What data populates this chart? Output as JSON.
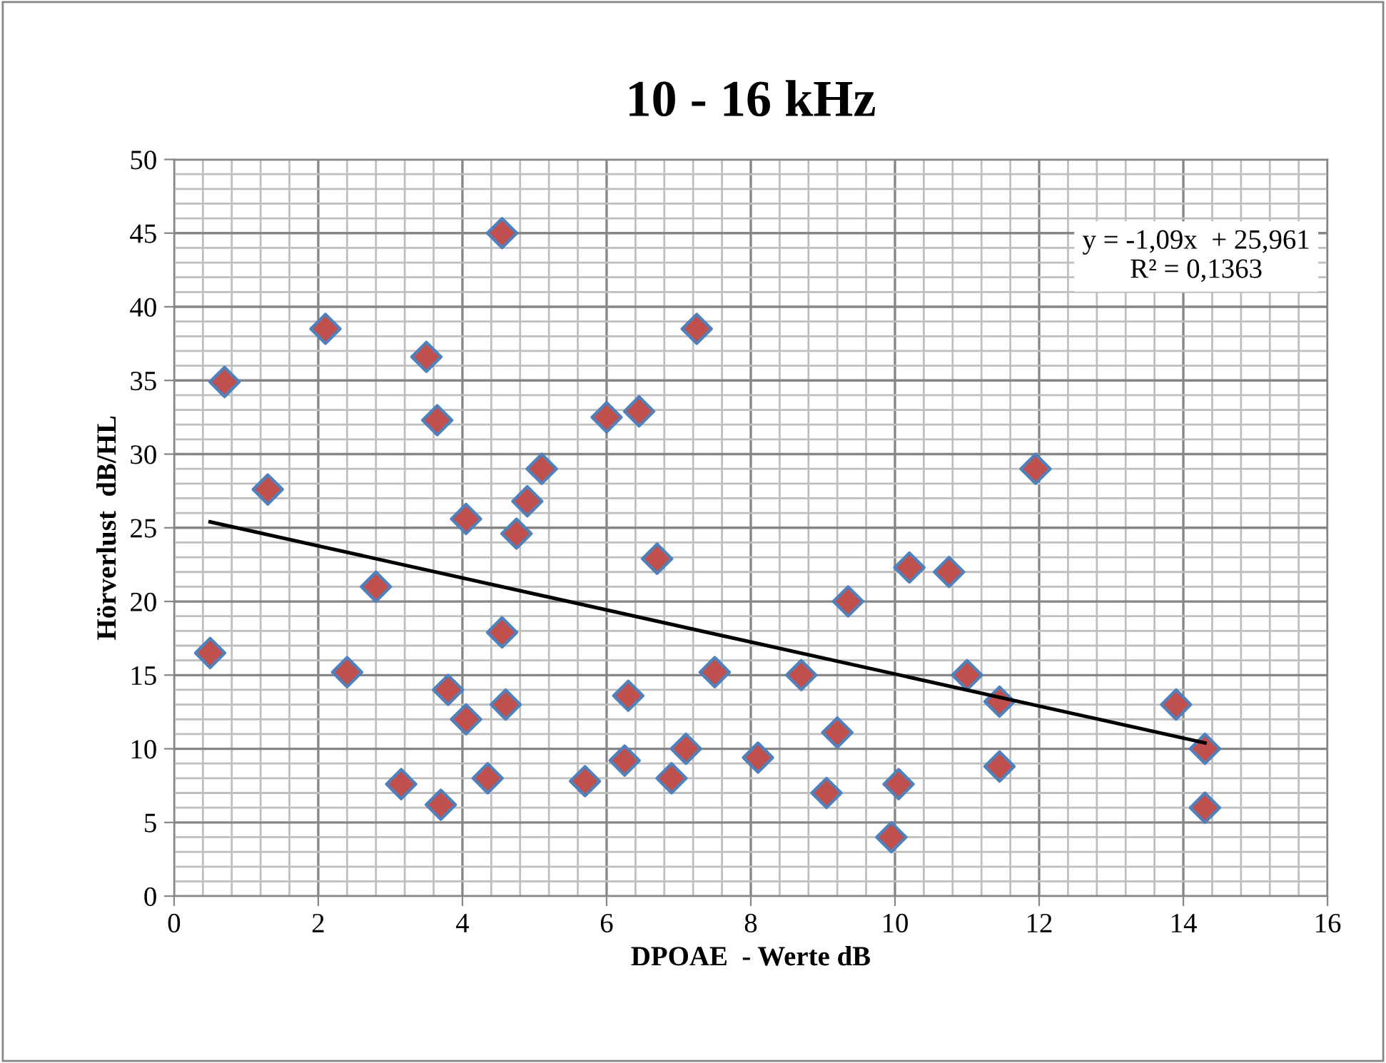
{
  "chart_data": {
    "type": "scatter",
    "title": "10 - 16 kHz",
    "xlabel": "DPOAE  - Werte dB",
    "ylabel": "Hörverlust  dB/HL",
    "xlim": [
      0,
      16
    ],
    "xticks": [
      0,
      2,
      4,
      6,
      8,
      10,
      12,
      14,
      16
    ],
    "ylim": [
      0,
      50
    ],
    "yticks": [
      0,
      5,
      10,
      15,
      20,
      25,
      30,
      35,
      40,
      45,
      50
    ],
    "grid": true,
    "series": [
      {
        "marker": "diamond",
        "color": "#c0504d",
        "x": [
          0.5,
          0.7,
          1.3,
          2.1,
          2.4,
          2.8,
          3.15,
          3.5,
          3.65,
          3.7,
          3.8,
          4.05,
          4.05,
          4.35,
          4.55,
          4.55,
          4.6,
          4.75,
          4.9,
          5.1,
          5.7,
          6.0,
          6.25,
          6.3,
          6.45,
          6.7,
          6.9,
          7.1,
          7.25,
          7.5,
          8.1,
          8.7,
          9.05,
          9.2,
          9.35,
          9.95,
          10.05,
          10.2,
          10.75,
          11.0,
          11.45,
          11.45,
          11.95,
          13.9,
          14.3,
          14.3
        ],
        "values": [
          16.5,
          34.9,
          27.6,
          38.5,
          15.2,
          21,
          7.6,
          36.6,
          32.3,
          6.2,
          14,
          25.6,
          12,
          8,
          45,
          17.9,
          13,
          24.6,
          26.8,
          29,
          7.8,
          32.5,
          9.2,
          13.6,
          32.9,
          22.9,
          8,
          10,
          38.5,
          15.2,
          9.4,
          15,
          7,
          11.1,
          20,
          4,
          7.6,
          22.3,
          22,
          15,
          13.2,
          8.8,
          29,
          13,
          10,
          6
        ]
      },
      {
        "type": "line",
        "marker": "none",
        "color": "#000000",
        "x": [
          0.5,
          14.3
        ],
        "values": [
          25.4,
          10.4
        ]
      }
    ],
    "annotations": [
      "y = -1,09x  + 25,961",
      "R² = 0,1363"
    ]
  }
}
